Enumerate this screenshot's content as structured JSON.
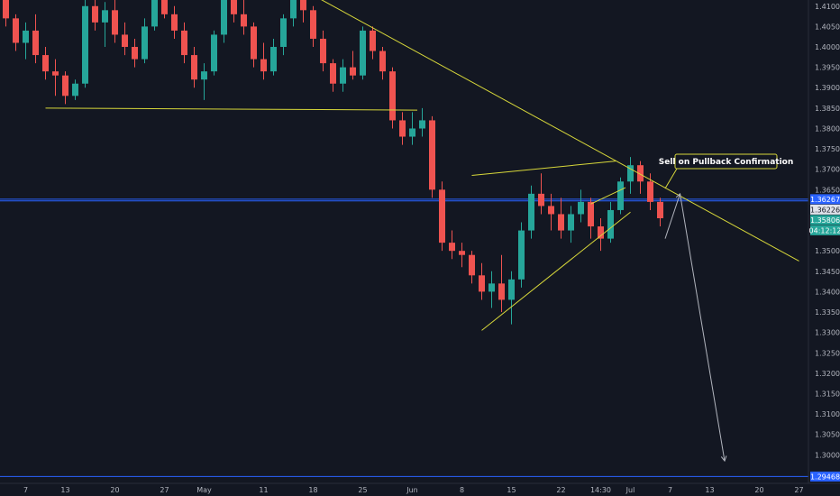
{
  "colors": {
    "background": "#131722",
    "up": "#26a69a",
    "down": "#ef5350",
    "trendline": "#d7d73a",
    "projection": "#b2b5be",
    "level": "#2962ff",
    "text": "#b2b5be"
  },
  "annotation": {
    "text": "Sell on Pullback Confirmation"
  },
  "chart_data": {
    "type": "candlestick",
    "ylim": [
      1.293,
      1.4115
    ],
    "grid": false,
    "y_ticks": [
      "1.41000",
      "1.40500",
      "1.40000",
      "1.39500",
      "1.39000",
      "1.38500",
      "1.38000",
      "1.37500",
      "1.37000",
      "1.36500",
      "1.36000",
      "1.35500",
      "1.35000",
      "1.34500",
      "1.34000",
      "1.33500",
      "1.33000",
      "1.32500",
      "1.32000",
      "1.31500",
      "1.31000",
      "1.30500",
      "1.30000",
      "1.29500"
    ],
    "x_ticks": [
      {
        "label": "7",
        "i": 2
      },
      {
        "label": "13",
        "i": 6
      },
      {
        "label": "20",
        "i": 11
      },
      {
        "label": "27",
        "i": 16
      },
      {
        "label": "May",
        "i": 20
      },
      {
        "label": "11",
        "i": 26
      },
      {
        "label": "18",
        "i": 31
      },
      {
        "label": "25",
        "i": 36
      },
      {
        "label": "Jun",
        "i": 41
      },
      {
        "label": "8",
        "i": 46
      },
      {
        "label": "15",
        "i": 51
      },
      {
        "label": "22",
        "i": 56
      },
      {
        "label": "14:30",
        "i": 60
      },
      {
        "label": "Jul",
        "i": 63
      },
      {
        "label": "7",
        "i": 67
      },
      {
        "label": "13",
        "i": 71
      },
      {
        "label": "20",
        "i": 76
      },
      {
        "label": "27",
        "i": 80
      }
    ],
    "price_labels": [
      {
        "value": 1.36267,
        "text": "1.36267",
        "bg": "#2962ff",
        "fg": "#ffffff"
      },
      {
        "value": 1.36226,
        "text": "1.36226",
        "bg": "#e0e3eb",
        "fg": "#131722"
      },
      {
        "value": 1.35806,
        "text": "1.35806",
        "bg": "#26a69a",
        "fg": "#ffffff"
      },
      {
        "value": 1.29468,
        "text": "1.29468",
        "bg": "#2962ff",
        "fg": "#ffffff"
      }
    ],
    "countdown": {
      "value": 1.3556,
      "text": "04:12:12",
      "bg": "#26a69a",
      "fg": "#ffffff"
    },
    "levels": [
      1.36267,
      1.36226,
      1.29468
    ],
    "trendlines": [
      {
        "name": "support",
        "i1": 4.0,
        "p1": 1.385,
        "i2": 41.5,
        "p2": 1.3845
      },
      {
        "name": "downtrend",
        "i1": 30.0,
        "p1": 1.414,
        "i2": 80.0,
        "p2": 1.3475
      },
      {
        "name": "wedge-top",
        "i1": 47.0,
        "p1": 1.3685,
        "i2": 61.5,
        "p2": 1.372
      },
      {
        "name": "wedge-bottom",
        "i1": 48.0,
        "p1": 1.3305,
        "i2": 63.0,
        "p2": 1.3595
      },
      {
        "name": "wedge-mid",
        "i1": 59.0,
        "p1": 1.3615,
        "i2": 62.5,
        "p2": 1.3655
      }
    ],
    "projection": [
      {
        "i": 66.5,
        "p": 1.353
      },
      {
        "i": 68.0,
        "p": 1.364
      },
      {
        "i": 72.5,
        "p": 1.2985
      }
    ],
    "candles": [
      [
        1.412,
        1.414,
        1.405,
        1.407
      ],
      [
        1.407,
        1.408,
        1.399,
        1.401
      ],
      [
        1.401,
        1.406,
        1.397,
        1.404
      ],
      [
        1.404,
        1.408,
        1.396,
        1.398
      ],
      [
        1.398,
        1.4,
        1.392,
        1.394
      ],
      [
        1.394,
        1.397,
        1.388,
        1.393
      ],
      [
        1.393,
        1.394,
        1.386,
        1.388
      ],
      [
        1.388,
        1.392,
        1.387,
        1.391
      ],
      [
        1.391,
        1.412,
        1.39,
        1.41
      ],
      [
        1.41,
        1.415,
        1.404,
        1.406
      ],
      [
        1.406,
        1.411,
        1.4,
        1.409
      ],
      [
        1.409,
        1.412,
        1.401,
        1.403
      ],
      [
        1.403,
        1.406,
        1.398,
        1.4
      ],
      [
        1.4,
        1.402,
        1.395,
        1.397
      ],
      [
        1.397,
        1.407,
        1.396,
        1.405
      ],
      [
        1.405,
        1.415,
        1.404,
        1.413
      ],
      [
        1.413,
        1.415,
        1.407,
        1.408
      ],
      [
        1.408,
        1.41,
        1.402,
        1.404
      ],
      [
        1.404,
        1.406,
        1.396,
        1.398
      ],
      [
        1.398,
        1.4,
        1.39,
        1.392
      ],
      [
        1.392,
        1.396,
        1.387,
        1.394
      ],
      [
        1.394,
        1.404,
        1.393,
        1.403
      ],
      [
        1.403,
        1.415,
        1.401,
        1.412
      ],
      [
        1.412,
        1.414,
        1.406,
        1.408
      ],
      [
        1.408,
        1.413,
        1.403,
        1.405
      ],
      [
        1.405,
        1.406,
        1.395,
        1.397
      ],
      [
        1.397,
        1.401,
        1.392,
        1.394
      ],
      [
        1.394,
        1.402,
        1.393,
        1.4
      ],
      [
        1.4,
        1.408,
        1.398,
        1.407
      ],
      [
        1.407,
        1.414,
        1.405,
        1.412
      ],
      [
        1.412,
        1.415,
        1.406,
        1.409
      ],
      [
        1.409,
        1.41,
        1.4,
        1.402
      ],
      [
        1.402,
        1.404,
        1.394,
        1.396
      ],
      [
        1.396,
        1.397,
        1.389,
        1.391
      ],
      [
        1.391,
        1.397,
        1.389,
        1.395
      ],
      [
        1.395,
        1.399,
        1.392,
        1.393
      ],
      [
        1.393,
        1.405,
        1.392,
        1.404
      ],
      [
        1.404,
        1.405,
        1.397,
        1.399
      ],
      [
        1.399,
        1.4,
        1.392,
        1.394
      ],
      [
        1.394,
        1.395,
        1.38,
        1.382
      ],
      [
        1.382,
        1.384,
        1.376,
        1.378
      ],
      [
        1.378,
        1.384,
        1.376,
        1.38
      ],
      [
        1.38,
        1.385,
        1.378,
        1.382
      ],
      [
        1.382,
        1.383,
        1.363,
        1.365
      ],
      [
        1.365,
        1.367,
        1.35,
        1.352
      ],
      [
        1.352,
        1.355,
        1.348,
        1.35
      ],
      [
        1.35,
        1.352,
        1.346,
        1.349
      ],
      [
        1.349,
        1.35,
        1.342,
        1.344
      ],
      [
        1.344,
        1.347,
        1.338,
        1.34
      ],
      [
        1.34,
        1.345,
        1.336,
        1.342
      ],
      [
        1.342,
        1.349,
        1.335,
        1.338
      ],
      [
        1.338,
        1.345,
        1.332,
        1.343
      ],
      [
        1.343,
        1.357,
        1.341,
        1.355
      ],
      [
        1.355,
        1.366,
        1.353,
        1.364
      ],
      [
        1.364,
        1.369,
        1.359,
        1.361
      ],
      [
        1.361,
        1.364,
        1.355,
        1.359
      ],
      [
        1.359,
        1.363,
        1.353,
        1.355
      ],
      [
        1.355,
        1.361,
        1.352,
        1.359
      ],
      [
        1.359,
        1.365,
        1.357,
        1.362
      ],
      [
        1.362,
        1.363,
        1.353,
        1.356
      ],
      [
        1.356,
        1.358,
        1.35,
        1.353
      ],
      [
        1.353,
        1.362,
        1.352,
        1.36
      ],
      [
        1.36,
        1.368,
        1.359,
        1.367
      ],
      [
        1.367,
        1.373,
        1.364,
        1.371
      ],
      [
        1.371,
        1.372,
        1.364,
        1.367
      ],
      [
        1.367,
        1.369,
        1.36,
        1.362
      ],
      [
        1.362,
        1.363,
        1.356,
        1.358
      ]
    ]
  }
}
